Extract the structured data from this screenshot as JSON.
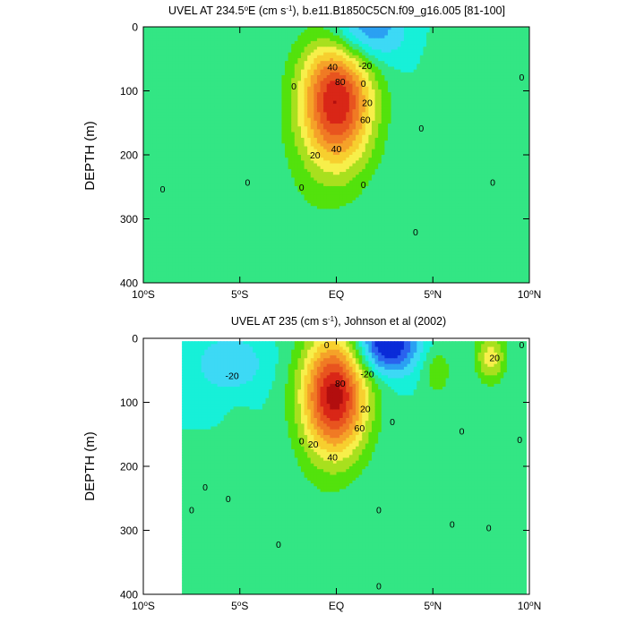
{
  "chart_data": [
    {
      "type": "heatmap",
      "title_main": "UVEL AT 234.5",
      "title_sup_deg": "o",
      "title_mid": "E (cm s",
      "title_sup_unit": "-1",
      "title_end": "), b.e11.B1850C5CN.f09_g16.005 [81-100]",
      "ylabel": "DEPTH (m)",
      "x_ticks": [
        {
          "value": -10,
          "num": "10",
          "sup": "o",
          "hemi": "S"
        },
        {
          "value": -5,
          "num": "5",
          "sup": "o",
          "hemi": "S"
        },
        {
          "value": 0,
          "num": "EQ",
          "sup": "",
          "hemi": ""
        },
        {
          "value": 5,
          "num": "5",
          "sup": "o",
          "hemi": "N"
        },
        {
          "value": 10,
          "num": "10",
          "sup": "o",
          "hemi": "N"
        }
      ],
      "y_ticks": [
        {
          "value": 0,
          "label": "0"
        },
        {
          "value": 100,
          "label": "100"
        },
        {
          "value": 200,
          "label": "200"
        },
        {
          "value": 300,
          "label": "300"
        },
        {
          "value": 400,
          "label": "400"
        }
      ],
      "xlim": [
        -10,
        10
      ],
      "ylim": [
        0,
        400
      ],
      "y_inverted": true,
      "features": [
        {
          "kind": "jet",
          "lat": 0,
          "depth": 115,
          "peak": 90,
          "lat_halfwidth": 1.9,
          "depth_halfwidth": 105
        },
        {
          "kind": "westward",
          "lat": 1.3,
          "depth": 5,
          "peak": -40,
          "lat_halfwidth": 2.0,
          "depth_halfwidth": 55
        },
        {
          "kind": "eastward",
          "lat": 6.0,
          "depth": 110,
          "peak": 10,
          "lat_halfwidth": 1.3,
          "depth_halfwidth": 120
        },
        {
          "kind": "eastward",
          "lat": -2.5,
          "depth": 330,
          "peak": 6,
          "lat_halfwidth": 3.5,
          "depth_halfwidth": 160
        }
      ],
      "contour_labels": [
        {
          "lat": -0.2,
          "depth": 62,
          "text": "40"
        },
        {
          "lat": 1.5,
          "depth": 60,
          "text": "-20"
        },
        {
          "lat": 1.6,
          "depth": 118,
          "text": "20"
        },
        {
          "lat": 1.5,
          "depth": 145,
          "text": "60"
        },
        {
          "lat": 0.2,
          "depth": 85,
          "text": "80"
        },
        {
          "lat": 0.0,
          "depth": 190,
          "text": "40"
        },
        {
          "lat": -1.1,
          "depth": 200,
          "text": "20"
        },
        {
          "lat": -2.2,
          "depth": 92,
          "text": "0"
        },
        {
          "lat": 1.4,
          "depth": 88,
          "text": "0"
        },
        {
          "lat": -9.0,
          "depth": 253,
          "text": "0"
        },
        {
          "lat": -4.6,
          "depth": 243,
          "text": "0"
        },
        {
          "lat": -1.8,
          "depth": 250,
          "text": "0"
        },
        {
          "lat": 1.4,
          "depth": 246,
          "text": "0"
        },
        {
          "lat": 4.4,
          "depth": 158,
          "text": "0"
        },
        {
          "lat": 4.1,
          "depth": 320,
          "text": "0"
        },
        {
          "lat": 8.1,
          "depth": 243,
          "text": "0"
        },
        {
          "lat": 9.6,
          "depth": 78,
          "text": "0"
        }
      ]
    },
    {
      "type": "heatmap",
      "title_main": "UVEL AT 235 (cm s",
      "title_sup_unit": "-1",
      "title_end": "), Johnson et al (2002)",
      "ylabel": "DEPTH (m)",
      "x_ticks": [
        {
          "value": -10,
          "num": "10",
          "sup": "o",
          "hemi": "S"
        },
        {
          "value": -5,
          "num": "5",
          "sup": "o",
          "hemi": "S"
        },
        {
          "value": 0,
          "num": "EQ",
          "sup": "",
          "hemi": ""
        },
        {
          "value": 5,
          "num": "5",
          "sup": "o",
          "hemi": "N"
        },
        {
          "value": 10,
          "num": "10",
          "sup": "o",
          "hemi": "N"
        }
      ],
      "y_ticks": [
        {
          "value": 0,
          "label": "0"
        },
        {
          "value": 100,
          "label": "100"
        },
        {
          "value": 200,
          "label": "200"
        },
        {
          "value": 300,
          "label": "300"
        },
        {
          "value": 400,
          "label": "400"
        }
      ],
      "xlim": [
        -10,
        10
      ],
      "ylim": [
        0,
        400
      ],
      "y_inverted": true,
      "data_lat_range": [
        -8,
        9.8
      ],
      "data_depth_range": [
        5,
        400
      ],
      "features": [
        {
          "kind": "jet",
          "lat": -0.1,
          "depth": 90,
          "peak": 95,
          "lat_halfwidth": 1.7,
          "depth_halfwidth": 95
        },
        {
          "kind": "westward",
          "lat": 2.6,
          "depth": 10,
          "peak": -55,
          "lat_halfwidth": 1.6,
          "depth_halfwidth": 45
        },
        {
          "kind": "westward",
          "lat": -5.5,
          "depth": 40,
          "peak": -20,
          "lat_halfwidth": 1.8,
          "depth_halfwidth": 45
        },
        {
          "kind": "eastward",
          "lat": 8.0,
          "depth": 30,
          "peak": 35,
          "lat_halfwidth": 0.8,
          "depth_halfwidth": 40
        },
        {
          "kind": "eastward",
          "lat": 5.2,
          "depth": 50,
          "peak": 18,
          "lat_halfwidth": 0.8,
          "depth_halfwidth": 40
        },
        {
          "kind": "eastward",
          "lat": -5.0,
          "depth": 200,
          "peak": 8,
          "lat_halfwidth": 0.6,
          "depth_halfwidth": 80
        },
        {
          "kind": "eastward",
          "lat": 4.0,
          "depth": 260,
          "peak": 7,
          "lat_halfwidth": 1.2,
          "depth_halfwidth": 110
        },
        {
          "kind": "eastward",
          "lat": -2.5,
          "depth": 330,
          "peak": 7,
          "lat_halfwidth": 3.0,
          "depth_halfwidth": 120
        }
      ],
      "contour_labels": [
        {
          "lat": -5.4,
          "depth": 58,
          "text": "-20"
        },
        {
          "lat": 1.6,
          "depth": 55,
          "text": "-20"
        },
        {
          "lat": 0.2,
          "depth": 70,
          "text": "80"
        },
        {
          "lat": 1.5,
          "depth": 110,
          "text": "20"
        },
        {
          "lat": 1.2,
          "depth": 140,
          "text": "60"
        },
        {
          "lat": -1.2,
          "depth": 165,
          "text": "20"
        },
        {
          "lat": -0.2,
          "depth": 185,
          "text": "40"
        },
        {
          "lat": -1.8,
          "depth": 160,
          "text": "0"
        },
        {
          "lat": -0.5,
          "depth": 10,
          "text": "0"
        },
        {
          "lat": 2.9,
          "depth": 130,
          "text": "0"
        },
        {
          "lat": 8.2,
          "depth": 30,
          "text": "20"
        },
        {
          "lat": 9.6,
          "depth": 10,
          "text": "0"
        },
        {
          "lat": -6.8,
          "depth": 232,
          "text": "0"
        },
        {
          "lat": -5.6,
          "depth": 250,
          "text": "0"
        },
        {
          "lat": -7.5,
          "depth": 268,
          "text": "0"
        },
        {
          "lat": -3.0,
          "depth": 322,
          "text": "0"
        },
        {
          "lat": 2.2,
          "depth": 268,
          "text": "0"
        },
        {
          "lat": 6.5,
          "depth": 145,
          "text": "0"
        },
        {
          "lat": 9.5,
          "depth": 158,
          "text": "0"
        },
        {
          "lat": 6.0,
          "depth": 290,
          "text": "0"
        },
        {
          "lat": 7.9,
          "depth": 296,
          "text": "0"
        },
        {
          "lat": 2.2,
          "depth": 387,
          "text": "0"
        }
      ]
    }
  ]
}
